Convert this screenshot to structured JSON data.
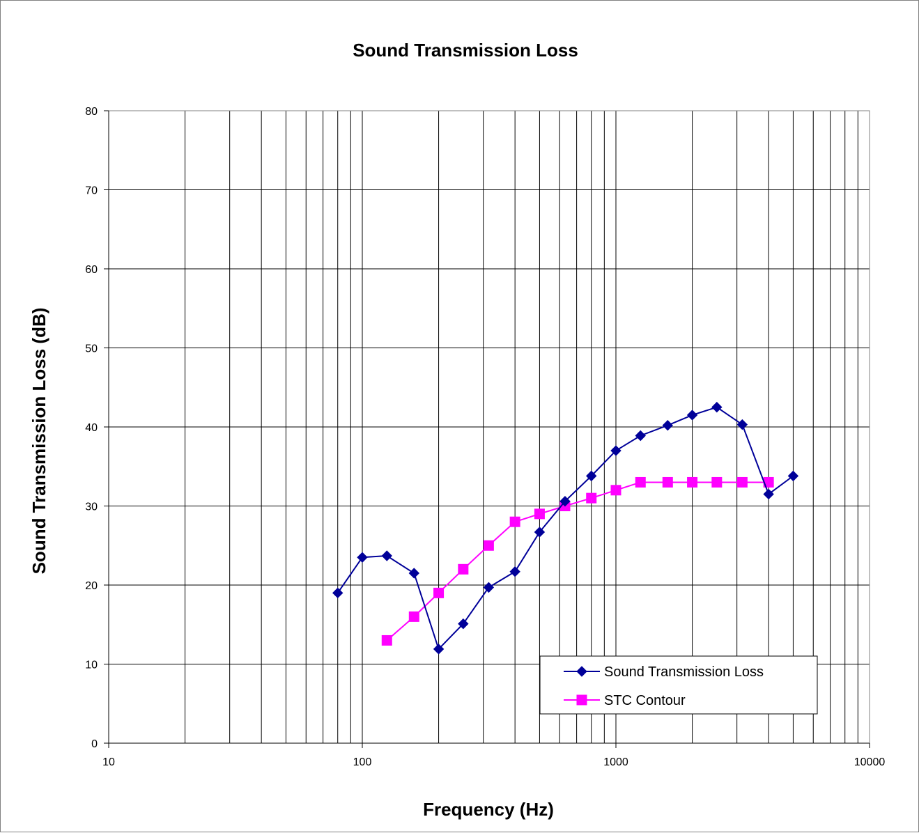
{
  "chart_data": {
    "type": "line",
    "title": "Sound Transmission Loss",
    "xlabel": "Frequency (Hz)",
    "ylabel": "Sound Transmission Loss (dB)",
    "x_scale": "log",
    "xlim": [
      10,
      10000
    ],
    "ylim": [
      0,
      80
    ],
    "x_ticks": [
      "10",
      "100",
      "1000",
      "10000"
    ],
    "y_ticks": [
      "0",
      "10",
      "20",
      "30",
      "40",
      "50",
      "60",
      "70",
      "80"
    ],
    "grid": true,
    "legend_position": "bottom-right",
    "series": [
      {
        "name": "Sound Transmission Loss",
        "color": "#000099",
        "marker": "diamond",
        "x": [
          80,
          100,
          125,
          160,
          200,
          250,
          315,
          400,
          500,
          630,
          800,
          1000,
          1250,
          1600,
          2000,
          2500,
          3150,
          4000,
          5000
        ],
        "y": [
          19.0,
          23.5,
          23.7,
          21.5,
          11.9,
          15.1,
          19.7,
          21.7,
          26.7,
          30.6,
          33.8,
          37.0,
          38.9,
          40.2,
          41.5,
          42.5,
          40.3,
          31.5,
          33.8
        ]
      },
      {
        "name": "STC Contour",
        "color": "#ff00ff",
        "marker": "square",
        "x": [
          125,
          160,
          200,
          250,
          315,
          400,
          500,
          630,
          800,
          1000,
          1250,
          1600,
          2000,
          2500,
          3150,
          4000
        ],
        "y": [
          13,
          16,
          19,
          22,
          25,
          28,
          29,
          30,
          31,
          32,
          33,
          33,
          33,
          33,
          33,
          33
        ]
      }
    ]
  }
}
